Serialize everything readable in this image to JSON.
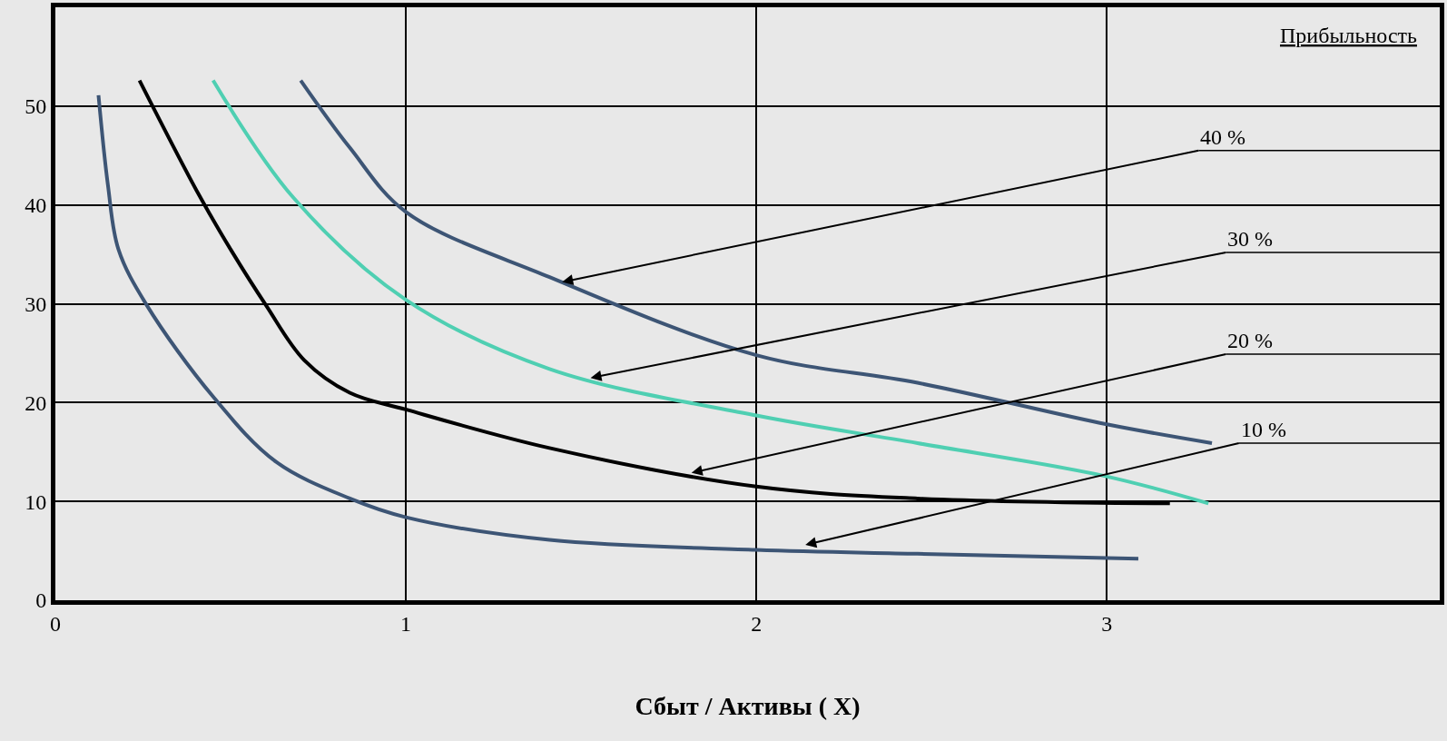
{
  "chart_data": {
    "type": "line",
    "xlabel": "Сбыт / Активы ( X)",
    "legend_title": "Прибыльность",
    "xlim": [
      0,
      3.95
    ],
    "ylim": [
      0,
      60
    ],
    "xticks": [
      0,
      1,
      2,
      3
    ],
    "yticks": [
      0,
      10,
      20,
      30,
      40,
      50
    ],
    "grid": true,
    "marker": "none",
    "line_style": "solid",
    "series": [
      {
        "color": "#3d5575",
        "x": [
          0.123,
          0.15,
          0.18,
          0.26,
          0.45,
          0.63,
          0.84,
          1.0,
          1.41,
          2.0,
          2.46,
          3.09
        ],
        "values": [
          51.1,
          42,
          35.5,
          29.9,
          20.6,
          14,
          10.3,
          8.4,
          6.1,
          5.1,
          4.7,
          4.2
        ]
      },
      {
        "color": "#000000",
        "x": [
          0.24,
          0.41,
          0.5,
          0.6,
          0.71,
          0.84,
          1.0,
          1.41,
          2.0,
          2.46,
          3.18
        ],
        "values": [
          52.6,
          41,
          35.5,
          29.9,
          24.3,
          21,
          19.3,
          15.4,
          11.5,
          10.3,
          9.8
        ]
      },
      {
        "color": "#4fcfb2",
        "x": [
          0.45,
          0.68,
          1.0,
          1.41,
          2.0,
          2.46,
          2.99,
          3.29
        ],
        "values": [
          52.6,
          40.7,
          30.4,
          23.4,
          18.7,
          15.9,
          12.6,
          9.8
        ]
      },
      {
        "color": "#3d5575",
        "x": [
          0.7,
          0.84,
          1.0,
          1.41,
          2.0,
          2.46,
          3.0,
          3.3
        ],
        "values": [
          52.6,
          45.8,
          39.3,
          32.7,
          24.8,
          22,
          17.8,
          15.9
        ]
      }
    ],
    "annotations": [
      {
        "text": "40 %",
        "x": 1.446,
        "y": 32.2
      },
      {
        "text": "30 %",
        "x": 1.527,
        "y": 22.5
      },
      {
        "text": "20 %",
        "x": 1.815,
        "y": 12.9
      },
      {
        "text": "10 %",
        "x": 2.14,
        "y": 5.6
      }
    ]
  }
}
